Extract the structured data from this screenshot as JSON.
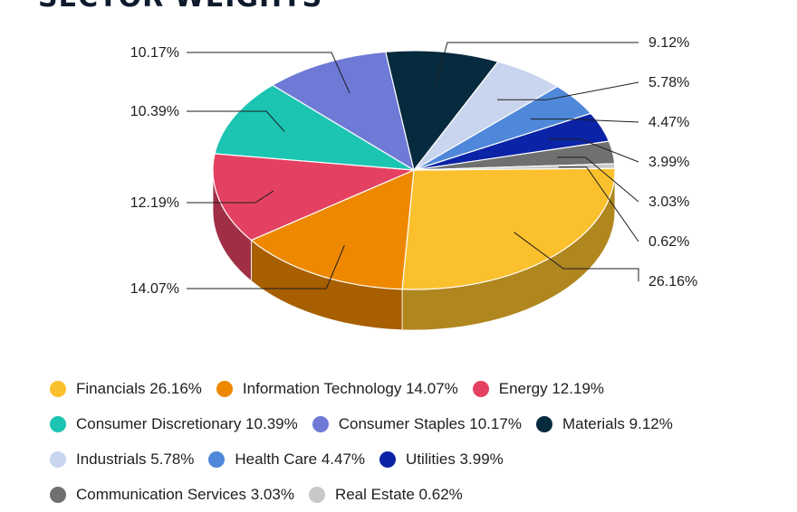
{
  "chart_data": {
    "type": "pie",
    "title": "SECTOR WEIGHTS",
    "slices": [
      {
        "label": "Financials",
        "value": 26.16,
        "display": "26.16%",
        "legend": "Financials 26.16%",
        "color": "#FBC02D"
      },
      {
        "label": "Information Technology",
        "value": 14.07,
        "display": "14.07%",
        "legend": "Information Technology 14.07%",
        "color": "#EE8800"
      },
      {
        "label": "Energy",
        "value": 12.19,
        "display": "12.19%",
        "legend": "Energy 12.19%",
        "color": "#E44162"
      },
      {
        "label": "Consumer Discretionary",
        "value": 10.39,
        "display": "10.39%",
        "legend": "Consumer Discretionary 10.39%",
        "color": "#1CC4B2"
      },
      {
        "label": "Consumer Staples",
        "value": 10.17,
        "display": "10.17%",
        "legend": "Consumer Staples 10.17%",
        "color": "#6E7AD6"
      },
      {
        "label": "Materials",
        "value": 9.12,
        "display": "9.12%",
        "legend": "Materials 9.12%",
        "color": "#062A3E"
      },
      {
        "label": "Industrials",
        "value": 5.78,
        "display": "5.78%",
        "legend": "Industrials 5.78%",
        "color": "#C9D4EE"
      },
      {
        "label": "Health Care",
        "value": 4.47,
        "display": "4.47%",
        "legend": "Health Care 4.47%",
        "color": "#4F88DA"
      },
      {
        "label": "Utilities",
        "value": 3.99,
        "display": "3.99%",
        "legend": "Utilities 3.99%",
        "color": "#0B23A6"
      },
      {
        "label": "Communication Services",
        "value": 3.03,
        "display": "3.03%",
        "legend": "Communication Services 3.03%",
        "color": "#707070"
      },
      {
        "label": "Real Estate",
        "value": 0.62,
        "display": "0.62%",
        "legend": "Real Estate 0.62%",
        "color": "#C8C8C8"
      }
    ],
    "legend_position": "bottom"
  }
}
